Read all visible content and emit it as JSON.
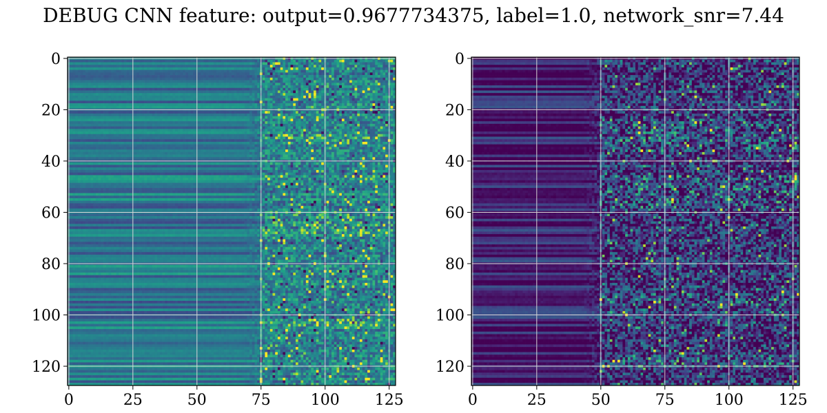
{
  "figure": {
    "title": "DEBUG CNN feature: output=0.9677734375, label=1.0, network_snr=7.44"
  },
  "chart_data": [
    {
      "type": "heatmap",
      "colormap": "viridis",
      "grid": true,
      "rows": 128,
      "cols": 128,
      "xlim": [
        0,
        127
      ],
      "ylim": [
        127,
        0
      ],
      "xticks": [
        0,
        25,
        50,
        75,
        100,
        125
      ],
      "yticks": [
        0,
        20,
        40,
        60,
        80,
        100,
        120
      ],
      "transition_col": 75,
      "left_region_level": 0.4,
      "right_region_level": 0.45,
      "noise_level": 0.25,
      "hot_row_ranges": [
        [
          30,
          32
        ],
        [
          60,
          62
        ],
        [
          64,
          68
        ],
        [
          102,
          104
        ]
      ]
    },
    {
      "type": "heatmap",
      "colormap": "viridis",
      "grid": true,
      "rows": 128,
      "cols": 128,
      "xlim": [
        0,
        127
      ],
      "ylim": [
        127,
        0
      ],
      "xticks": [
        0,
        25,
        50,
        75,
        100,
        125
      ],
      "yticks": [
        0,
        20,
        40,
        60,
        80,
        100,
        120
      ],
      "transition_col": 50,
      "left_region_level": 0.1,
      "right_region_level": 0.15,
      "noise_level": 0.35,
      "hot_row_ranges": [
        [
          24,
          36
        ],
        [
          46,
          58
        ],
        [
          92,
          96
        ],
        [
          116,
          120
        ]
      ]
    }
  ]
}
